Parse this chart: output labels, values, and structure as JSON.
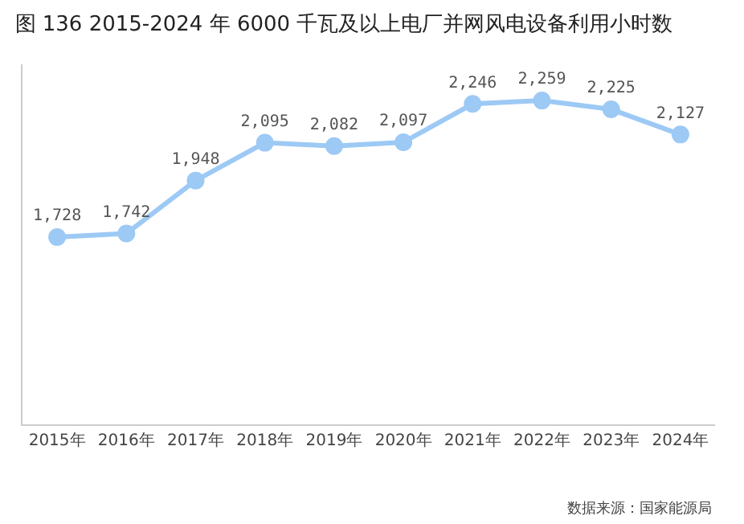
{
  "chart_data": {
    "type": "line",
    "title": "图 136 2015-2024 年 6000 千瓦及以上电厂并网风电设备利用小时数",
    "categories": [
      "2015年",
      "2016年",
      "2017年",
      "2018年",
      "2019年",
      "2020年",
      "2021年",
      "2022年",
      "2023年",
      "2024年"
    ],
    "values": [
      1728,
      1742,
      1948,
      2095,
      2082,
      2097,
      2246,
      2259,
      2225,
      2127
    ],
    "value_labels": [
      "1,728",
      "1,742",
      "1,948",
      "2,095",
      "2,082",
      "2,097",
      "2,246",
      "2,259",
      "2,225",
      "2,127"
    ],
    "color": "#9dc9f5",
    "marker": "circle",
    "line_style": "solid",
    "ylim": [
      1000,
      2400
    ],
    "tick_labels": "x",
    "grid": false,
    "legend": false,
    "annotations": [
      "数据来源：国家能源局"
    ]
  }
}
